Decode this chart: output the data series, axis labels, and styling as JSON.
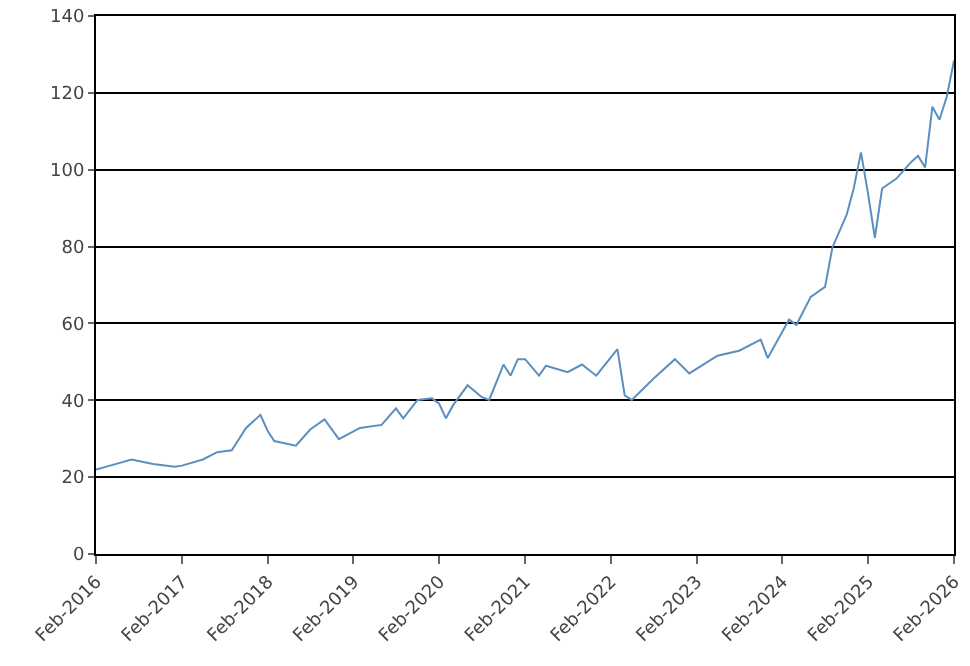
{
  "chart_data": {
    "type": "line",
    "x": [
      "2016-02",
      "2016-04",
      "2016-07",
      "2016-10",
      "2017-01",
      "2017-02",
      "2017-05",
      "2017-07",
      "2017-09",
      "2017-11",
      "2018-01",
      "2018-02",
      "2018-03",
      "2018-06",
      "2018-08",
      "2018-10",
      "2018-12",
      "2019-03",
      "2019-06",
      "2019-08",
      "2019-09",
      "2019-11",
      "2020-01",
      "2020-02",
      "2020-03",
      "2020-04",
      "2020-06",
      "2020-08",
      "2020-09",
      "2020-11",
      "2020-12",
      "2021-01",
      "2021-02",
      "2021-04",
      "2021-05",
      "2021-08",
      "2021-10",
      "2021-12",
      "2022-03",
      "2022-04",
      "2022-05",
      "2022-08",
      "2022-11",
      "2023-01",
      "2023-05",
      "2023-08",
      "2023-11",
      "2023-12",
      "2024-03",
      "2024-04",
      "2024-06",
      "2024-08",
      "2024-09",
      "2024-11",
      "2024-12",
      "2025-01",
      "2025-02",
      "2025-03",
      "2025-04",
      "2025-06",
      "2025-08",
      "2025-09",
      "2025-10",
      "2025-11",
      "2025-12",
      "2026-01",
      "2026-02"
    ],
    "series": [
      {
        "color": "#5b8fc0",
        "values": [
          22,
          23,
          24.6,
          23.4,
          22.7,
          23,
          24.6,
          26.5,
          27,
          32.8,
          36.2,
          32,
          29.4,
          28.2,
          32.4,
          35,
          29.9,
          32.8,
          33.6,
          37.9,
          35.3,
          40.1,
          40.5,
          39.1,
          35.3,
          38.8,
          43.9,
          40.8,
          40.1,
          49.3,
          46.4,
          50.7,
          50.7,
          46.4,
          49,
          47.3,
          49.3,
          46.4,
          53.3,
          41.3,
          40.1,
          45.6,
          50.7,
          47,
          51.6,
          52.9,
          55.8,
          51,
          61,
          59.6,
          66.9,
          69.5,
          79.7,
          88.3,
          95.1,
          104.5,
          93.4,
          82.3,
          95.1,
          97.7,
          101.9,
          103.6,
          100.6,
          116.4,
          113,
          119,
          128.4
        ]
      }
    ],
    "xlim": [
      "2016-02",
      "2026-02"
    ],
    "xticks": [
      {
        "value": "2016-02",
        "label": "Feb-2016"
      },
      {
        "value": "2017-02",
        "label": "Feb-2017"
      },
      {
        "value": "2018-02",
        "label": "Feb-2018"
      },
      {
        "value": "2019-02",
        "label": "Feb-2019"
      },
      {
        "value": "2020-02",
        "label": "Feb-2020"
      },
      {
        "value": "2021-02",
        "label": "Feb-2021"
      },
      {
        "value": "2022-02",
        "label": "Feb-2022"
      },
      {
        "value": "2023-02",
        "label": "Feb-2023"
      },
      {
        "value": "2024-02",
        "label": "Feb-2024"
      },
      {
        "value": "2025-02",
        "label": "Feb-2025"
      },
      {
        "value": "2026-02",
        "label": "Feb-2026"
      }
    ],
    "ylim": [
      0,
      140
    ],
    "yticks": [
      0,
      20,
      40,
      60,
      80,
      100,
      120,
      140
    ],
    "grid": "y",
    "marker": "none",
    "line_style": "solid"
  }
}
